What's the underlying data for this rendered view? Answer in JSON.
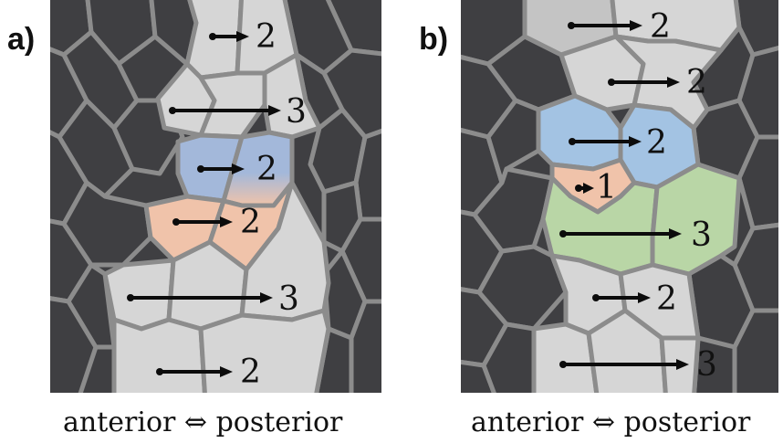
{
  "panel_a": {
    "label": "a)",
    "caption": "anterior ⇔ posterior",
    "rows": [
      {
        "count": "2",
        "color": "#d6d6d6"
      },
      {
        "count": "3",
        "color": "#d6d6d6"
      },
      {
        "count": "2",
        "color": "#a3b8da"
      },
      {
        "count": "2",
        "color": "#f0c3aa"
      },
      {
        "count": "3",
        "color": "#d6d6d6"
      },
      {
        "count": "2",
        "color": "#d6d6d6"
      }
    ]
  },
  "panel_b": {
    "label": "b)",
    "caption": "anterior ⇔ posterior",
    "rows": [
      {
        "count": "2",
        "color": "#c4c4c4"
      },
      {
        "count": "2",
        "color": "#d6d6d6"
      },
      {
        "count": "2",
        "color": "#a3c3e3"
      },
      {
        "count": "1",
        "color": "#f0c3aa"
      },
      {
        "count": "3",
        "color": "#b9d6a6"
      },
      {
        "count": "2",
        "color": "#d6d6d6"
      },
      {
        "count": "3",
        "color": "#d6d6d6"
      }
    ]
  },
  "colors": {
    "background_cells": "#3f3f42",
    "cell_border": "#8c8c8c",
    "neutral_cells": "#d6d6d6",
    "blue_cells": "#a3c3e3",
    "orange_cells": "#f0c3aa",
    "green_cells": "#b9d6a6"
  }
}
